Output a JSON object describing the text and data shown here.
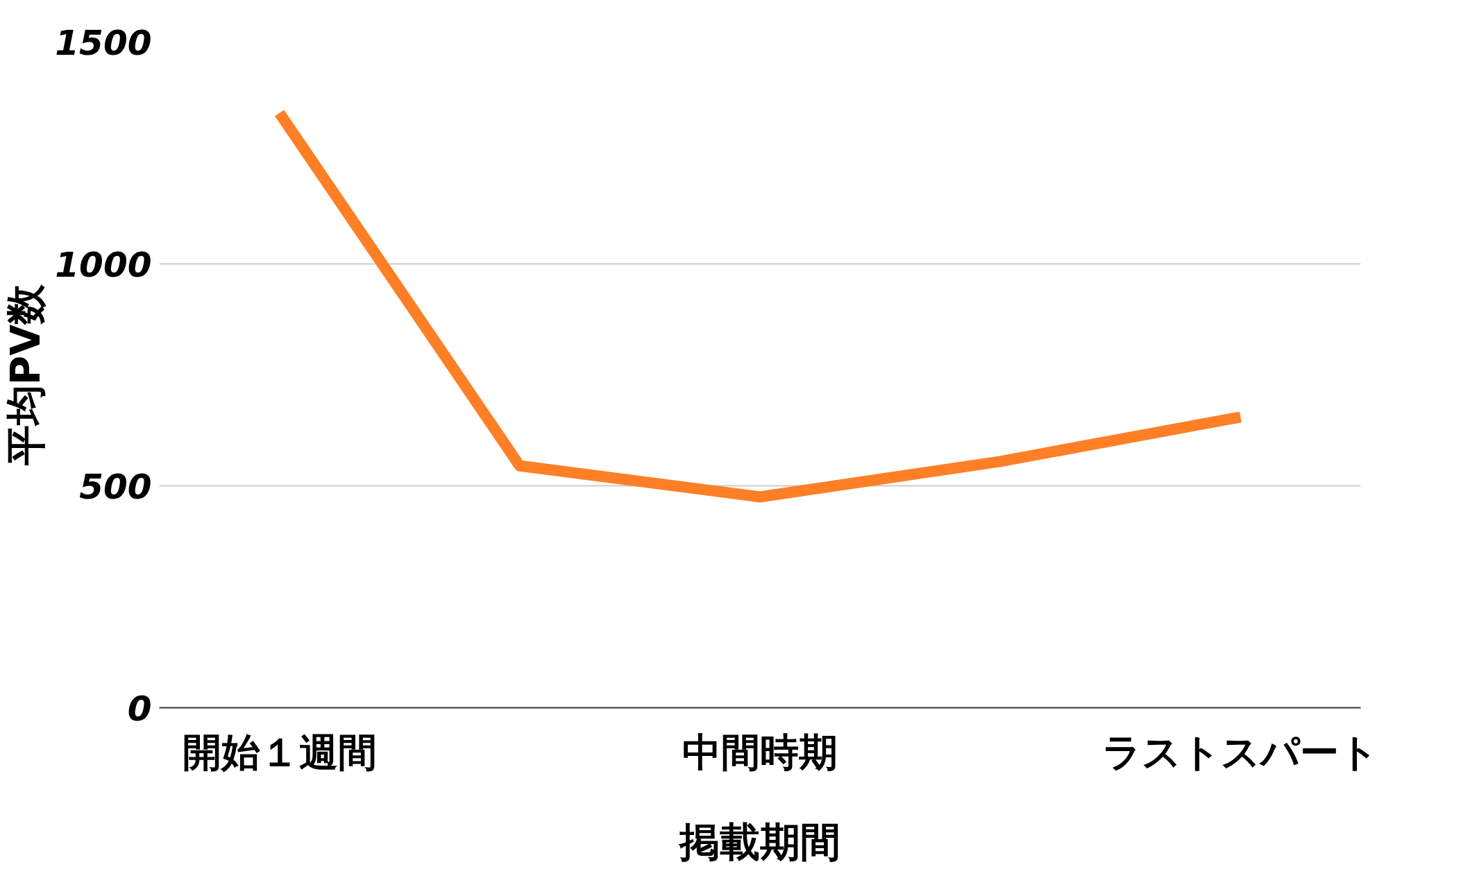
{
  "chart_data": {
    "type": "line",
    "xlabel": "掲載期間",
    "ylabel": "平均PV数",
    "categories": [
      "開始１週間",
      null,
      "中間時期",
      null,
      "ラストスパート"
    ],
    "series": [
      {
        "color": "#ff7f27",
        "values": [
          1340,
          545,
          475,
          555,
          655
        ]
      }
    ],
    "ylim": [
      0,
      1500
    ],
    "yticks": [
      0,
      500,
      1000,
      1500
    ],
    "grid": "y"
  }
}
